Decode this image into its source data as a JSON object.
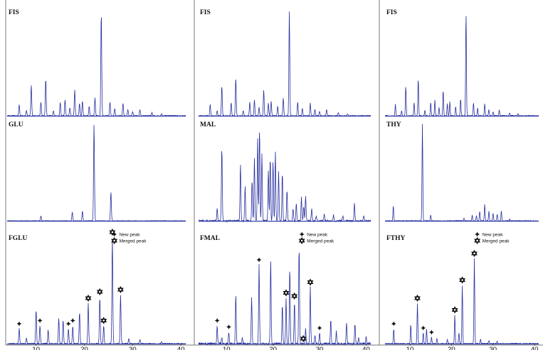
{
  "chart_data": [
    {
      "type": "line",
      "title": "FIS",
      "peaks": [
        [
          6.5,
          0.11
        ],
        [
          8,
          0.05
        ],
        [
          9,
          0.29
        ],
        [
          11,
          0.13
        ],
        [
          12,
          0.36
        ],
        [
          13.6,
          0.05
        ],
        [
          15,
          0.13
        ],
        [
          16,
          0.15
        ],
        [
          17,
          0.08
        ],
        [
          18,
          0.25
        ],
        [
          19,
          0.12
        ],
        [
          19.6,
          0.14
        ],
        [
          21,
          0.09
        ],
        [
          22.2,
          0.17
        ],
        [
          23.5,
          1.0
        ],
        [
          25.3,
          0.13
        ],
        [
          26.3,
          0.07
        ],
        [
          28,
          0.12
        ],
        [
          29,
          0.06
        ],
        [
          30,
          0.04
        ],
        [
          31.5,
          0.06
        ],
        [
          34,
          0.03
        ],
        [
          36,
          0.02
        ]
      ]
    },
    {
      "type": "line",
      "title": "FIS",
      "peaks": [
        [
          6.5,
          0.11
        ],
        [
          8,
          0.05
        ],
        [
          9,
          0.29
        ],
        [
          11,
          0.13
        ],
        [
          12,
          0.36
        ],
        [
          13.6,
          0.05
        ],
        [
          15,
          0.13
        ],
        [
          16,
          0.15
        ],
        [
          17,
          0.08
        ],
        [
          18,
          0.25
        ],
        [
          19,
          0.12
        ],
        [
          19.6,
          0.14
        ],
        [
          21,
          0.09
        ],
        [
          22.2,
          0.17
        ],
        [
          23.5,
          1.0
        ],
        [
          25.3,
          0.13
        ],
        [
          26.3,
          0.07
        ],
        [
          28,
          0.12
        ],
        [
          29,
          0.06
        ],
        [
          30,
          0.04
        ],
        [
          31.5,
          0.06
        ],
        [
          34,
          0.03
        ],
        [
          36,
          0.02
        ]
      ]
    },
    {
      "type": "line",
      "title": "FIS",
      "peaks": [
        [
          6.5,
          0.11
        ],
        [
          8,
          0.05
        ],
        [
          9,
          0.29
        ],
        [
          11,
          0.13
        ],
        [
          12,
          0.36
        ],
        [
          13.6,
          0.05
        ],
        [
          15,
          0.13
        ],
        [
          16,
          0.15
        ],
        [
          17,
          0.08
        ],
        [
          18,
          0.25
        ],
        [
          19,
          0.12
        ],
        [
          19.6,
          0.14
        ],
        [
          21,
          0.09
        ],
        [
          22.2,
          0.17
        ],
        [
          23.5,
          1.0
        ],
        [
          25.3,
          0.13
        ],
        [
          26.3,
          0.07
        ],
        [
          28,
          0.12
        ],
        [
          29,
          0.06
        ],
        [
          30,
          0.04
        ],
        [
          31.5,
          0.06
        ],
        [
          34,
          0.03
        ],
        [
          36,
          0.02
        ]
      ]
    },
    {
      "type": "line",
      "title": "GLU",
      "peaks": [
        [
          11,
          0.05
        ],
        [
          17.5,
          0.09
        ],
        [
          19.6,
          0.1
        ],
        [
          22,
          1.0
        ],
        [
          25.5,
          0.3
        ]
      ]
    },
    {
      "type": "line",
      "title": "MAL",
      "peaks": [
        [
          8,
          0.13
        ],
        [
          9,
          0.75
        ],
        [
          13,
          0.58
        ],
        [
          14,
          0.35
        ],
        [
          15.5,
          0.42
        ],
        [
          16,
          0.65
        ],
        [
          16.7,
          0.85
        ],
        [
          17.1,
          0.95
        ],
        [
          17.6,
          0.7
        ],
        [
          19,
          0.52
        ],
        [
          19.4,
          0.66
        ],
        [
          20,
          0.62
        ],
        [
          20.5,
          0.72
        ],
        [
          21.2,
          0.5
        ],
        [
          22,
          0.5
        ],
        [
          23,
          0.32
        ],
        [
          24.3,
          0.12
        ],
        [
          25,
          0.18
        ],
        [
          26.1,
          0.24
        ],
        [
          26.6,
          0.15
        ],
        [
          27,
          0.26
        ],
        [
          28.3,
          0.12
        ],
        [
          29.3,
          0.05
        ],
        [
          31,
          0.08
        ],
        [
          33,
          0.06
        ],
        [
          35,
          0.05
        ],
        [
          37.5,
          0.18
        ],
        [
          39.5,
          0.05
        ]
      ]
    },
    {
      "type": "line",
      "title": "THY",
      "peaks": [
        [
          6,
          0.16
        ],
        [
          13,
          1.0
        ],
        [
          15,
          0.06
        ],
        [
          23,
          0.03
        ],
        [
          25,
          0.06
        ],
        [
          26,
          0.05
        ],
        [
          26.8,
          0.1
        ],
        [
          28,
          0.17
        ],
        [
          29,
          0.1
        ],
        [
          30,
          0.08
        ],
        [
          31,
          0.07
        ],
        [
          32,
          0.1
        ],
        [
          34,
          0.02
        ]
      ]
    },
    {
      "type": "line",
      "title": "FGLU",
      "x_ticks": [
        10,
        20,
        30,
        40
      ],
      "legend": [
        "New peak",
        "Merged peak"
      ],
      "peaks": [
        [
          6.5,
          0.14
        ],
        [
          8,
          0.05
        ],
        [
          10,
          0.32
        ],
        [
          10.8,
          0.17
        ],
        [
          12.5,
          0.13
        ],
        [
          14.7,
          0.24
        ],
        [
          15.6,
          0.22
        ],
        [
          16.7,
          0.14
        ],
        [
          17.6,
          0.17
        ],
        [
          19,
          0.3
        ],
        [
          20.8,
          0.38
        ],
        [
          23.2,
          0.44
        ],
        [
          24,
          0.17
        ],
        [
          25.8,
          1.0
        ],
        [
          27.5,
          0.46
        ],
        [
          29.2,
          0.05
        ],
        [
          31.5,
          0.04
        ],
        [
          36,
          0.02
        ]
      ]
    },
    {
      "type": "line",
      "title": "FMAL",
      "x_ticks": [
        10,
        20,
        30,
        40
      ],
      "legend": [
        "New peak",
        "Merged peak"
      ],
      "peaks": [
        [
          8,
          0.17
        ],
        [
          9,
          0.06
        ],
        [
          10.5,
          0.11
        ],
        [
          12,
          0.46
        ],
        [
          13.4,
          0.05
        ],
        [
          15.4,
          0.44
        ],
        [
          17,
          0.74
        ],
        [
          19.5,
          0.79
        ],
        [
          22,
          0.37
        ],
        [
          22.8,
          0.43
        ],
        [
          23.6,
          0.72
        ],
        [
          24.6,
          0.4
        ],
        [
          25.6,
          0.91
        ],
        [
          27,
          0.14
        ],
        [
          28,
          0.53
        ],
        [
          29,
          0.08
        ],
        [
          30,
          0.1
        ],
        [
          32.4,
          0.22
        ],
        [
          33.6,
          0.12
        ],
        [
          35.8,
          0.2
        ],
        [
          37.6,
          0.18
        ],
        [
          38.4,
          0.05
        ],
        [
          40,
          0.06
        ]
      ]
    },
    {
      "type": "line",
      "title": "FTHY",
      "x_ticks": [
        10,
        20,
        30,
        40
      ],
      "legend": [
        "New peak",
        "Merged peak"
      ],
      "peaks": [
        [
          6.1,
          0.14
        ],
        [
          10.2,
          0.18
        ],
        [
          11.8,
          0.38
        ],
        [
          13.2,
          0.1
        ],
        [
          14,
          0.14
        ],
        [
          15.2,
          0.06
        ],
        [
          16.5,
          0.05
        ],
        [
          19,
          0.04
        ],
        [
          20.8,
          0.27
        ],
        [
          21.8,
          0.1
        ],
        [
          22.6,
          0.55
        ],
        [
          25.5,
          0.8
        ],
        [
          27,
          0.04
        ],
        [
          29,
          0.03
        ],
        [
          31,
          0.02
        ]
      ]
    }
  ]
}
